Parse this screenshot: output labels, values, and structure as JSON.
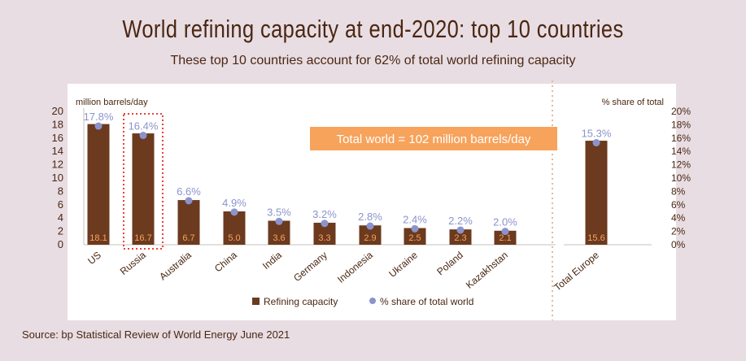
{
  "title": "World refining capacity at end-2020:  top 10 countries",
  "subtitle": "These top 10 countries account for 62% of total world refining capacity",
  "source": "Source:  bp Statistical Review of World Energy June 2021",
  "callout": "Total world = 102 million barrels/day",
  "colors": {
    "bar": "#6b3a1f",
    "dot": "#8c93cc",
    "highlight_border": "#e8433f",
    "callout_bg": "#f7a35c",
    "value_label": "#f7a35c",
    "pct_label": "#8c93cc",
    "text": "#4a2712",
    "divider": "#e8b89a"
  },
  "chart_data": {
    "type": "bar",
    "ylabel_left": "million barrels/day",
    "ylabel_right": "% share of total",
    "ylim_left": [
      0,
      20
    ],
    "ylim_right": [
      0,
      20
    ],
    "yticks_left": [
      "0",
      "2",
      "4",
      "6",
      "8",
      "10",
      "12",
      "14",
      "16",
      "18",
      "20"
    ],
    "yticks_right": [
      "0%",
      "2%",
      "4%",
      "6%",
      "8%",
      "10%",
      "12%",
      "14%",
      "16%",
      "18%",
      "20%"
    ],
    "categories": [
      "US",
      "Russia",
      "Australia",
      "China",
      "India",
      "Germany",
      "Indonesia",
      "Ukraine",
      "Poland",
      "Kazakhstan",
      "Total Europe"
    ],
    "series": [
      {
        "name": "Refining capacity",
        "values": [
          18.1,
          16.7,
          6.7,
          5.0,
          3.6,
          3.3,
          2.9,
          2.5,
          2.3,
          2.1,
          15.6
        ],
        "labels": [
          "18.1",
          "16.7",
          "6.7",
          "5.0",
          "3.6",
          "3.3",
          "2.9",
          "2.5",
          "2.3",
          "2.1",
          "15.6"
        ]
      },
      {
        "name": "% share of total world",
        "values": [
          17.8,
          16.4,
          6.6,
          4.9,
          3.5,
          3.2,
          2.8,
          2.4,
          2.2,
          2.0,
          15.3
        ],
        "labels": [
          "17.8%",
          "16.4%",
          "6.6%",
          "4.9%",
          "3.5%",
          "3.2%",
          "2.8%",
          "2.4%",
          "2.2%",
          "2.0%",
          "15.3%"
        ]
      }
    ],
    "highlighted_category": "Russia",
    "grid": false,
    "legend": "bottom"
  }
}
